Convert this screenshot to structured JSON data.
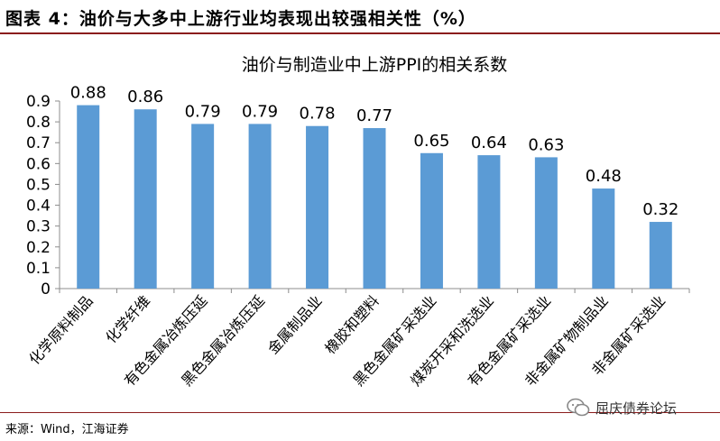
{
  "figure": {
    "caption": "图表 4：油价与大多中上游行业均表现出较强相关性（%）",
    "source": "来源：Wind，江海证券",
    "watermark": "屈庆债券论坛"
  },
  "colors": {
    "bar": "#5b9bd5",
    "rule": "#8b1d1d",
    "axis": "#8c8c8c"
  },
  "chart_data": {
    "type": "bar",
    "title": "油价与制造业中上游PPI的相关系数",
    "xlabel": "",
    "ylabel": "",
    "ylim": [
      0,
      0.9
    ],
    "yticks": [
      "0",
      "0.1",
      "0.2",
      "0.3",
      "0.4",
      "0.5",
      "0.6",
      "0.7",
      "0.8",
      "0.9"
    ],
    "grid": false,
    "legend": "none",
    "categories": [
      "化学原料制品",
      "化学纤维",
      "有色金属冶炼压延",
      "黑色金属冶炼压延",
      "金属制品业",
      "橡胶和塑料",
      "黑色金属矿采选业",
      "煤炭开采和洗选业",
      "有色金属矿采选业",
      "非金属矿物制品业",
      "非金属矿采选业"
    ],
    "values": [
      0.88,
      0.86,
      0.79,
      0.79,
      0.78,
      0.77,
      0.65,
      0.64,
      0.63,
      0.48,
      0.32
    ],
    "data_labels": [
      "0.88",
      "0.86",
      "0.79",
      "0.79",
      "0.78",
      "0.77",
      "0.65",
      "0.64",
      "0.63",
      "0.48",
      "0.32"
    ]
  }
}
